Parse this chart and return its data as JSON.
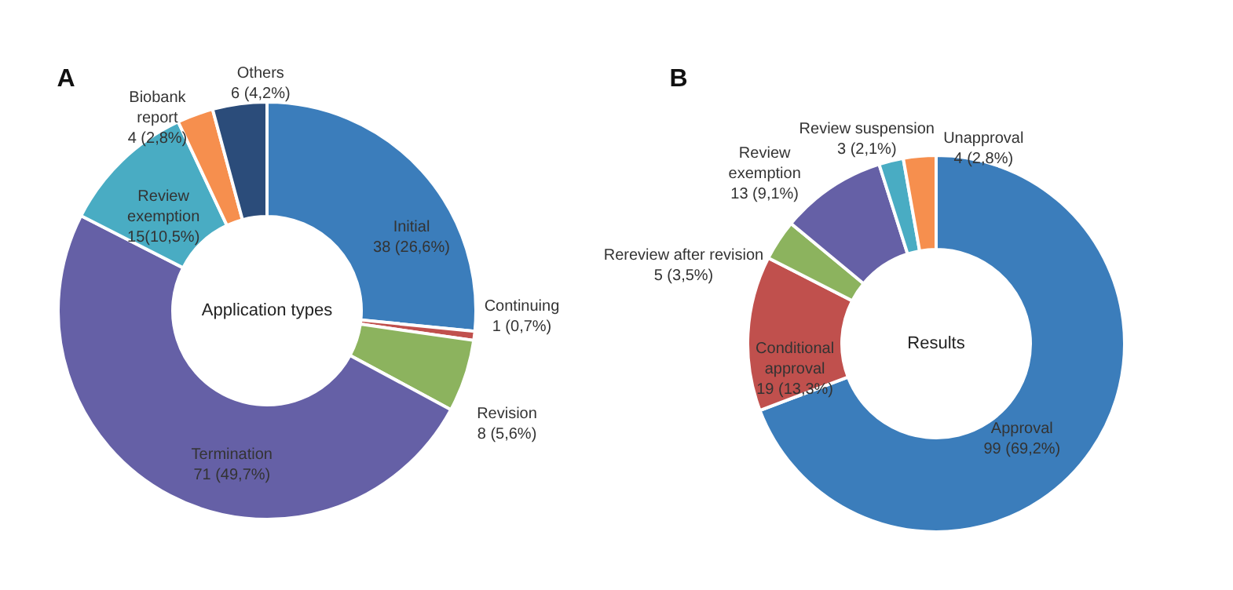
{
  "chart_data": [
    {
      "type": "donut",
      "title": "Application types",
      "annotations": [
        "A"
      ],
      "categories": [
        "Initial",
        "Continuing",
        "Revision",
        "Termination",
        "Review exemption",
        "Biobank report",
        "Others"
      ],
      "values": [
        38,
        1,
        8,
        71,
        15,
        4,
        6
      ],
      "value_labels": [
        "38 (26,6%)",
        "1 (0,7%)",
        "8 (5,6%)",
        "71 (49,7%)",
        "15(10,5%)",
        "4 (2,8%)",
        "6 (4,2%)"
      ],
      "colors": [
        "#3b7dbb",
        "#c0504d",
        "#8cb35e",
        "#6560a6",
        "#49acc3",
        "#f68f4e",
        "#2b4c7a"
      ]
    },
    {
      "type": "donut",
      "title": "Results",
      "annotations": [
        "B"
      ],
      "categories": [
        "Approval",
        "Conditional approval",
        "Rereview after revision",
        "Review exemption",
        "Review suspension",
        "Unapproval"
      ],
      "values": [
        99,
        19,
        5,
        13,
        3,
        4
      ],
      "value_labels": [
        "99 (69,2%)",
        "19 (13,3%)",
        "5 (3,5%)",
        "13 (9,1%)",
        "3 (2,1%)",
        "4 (2,8%)"
      ],
      "colors": [
        "#3b7dbb",
        "#c0504d",
        "#8cb35e",
        "#6560a6",
        "#49acc3",
        "#f68f4e"
      ]
    }
  ]
}
